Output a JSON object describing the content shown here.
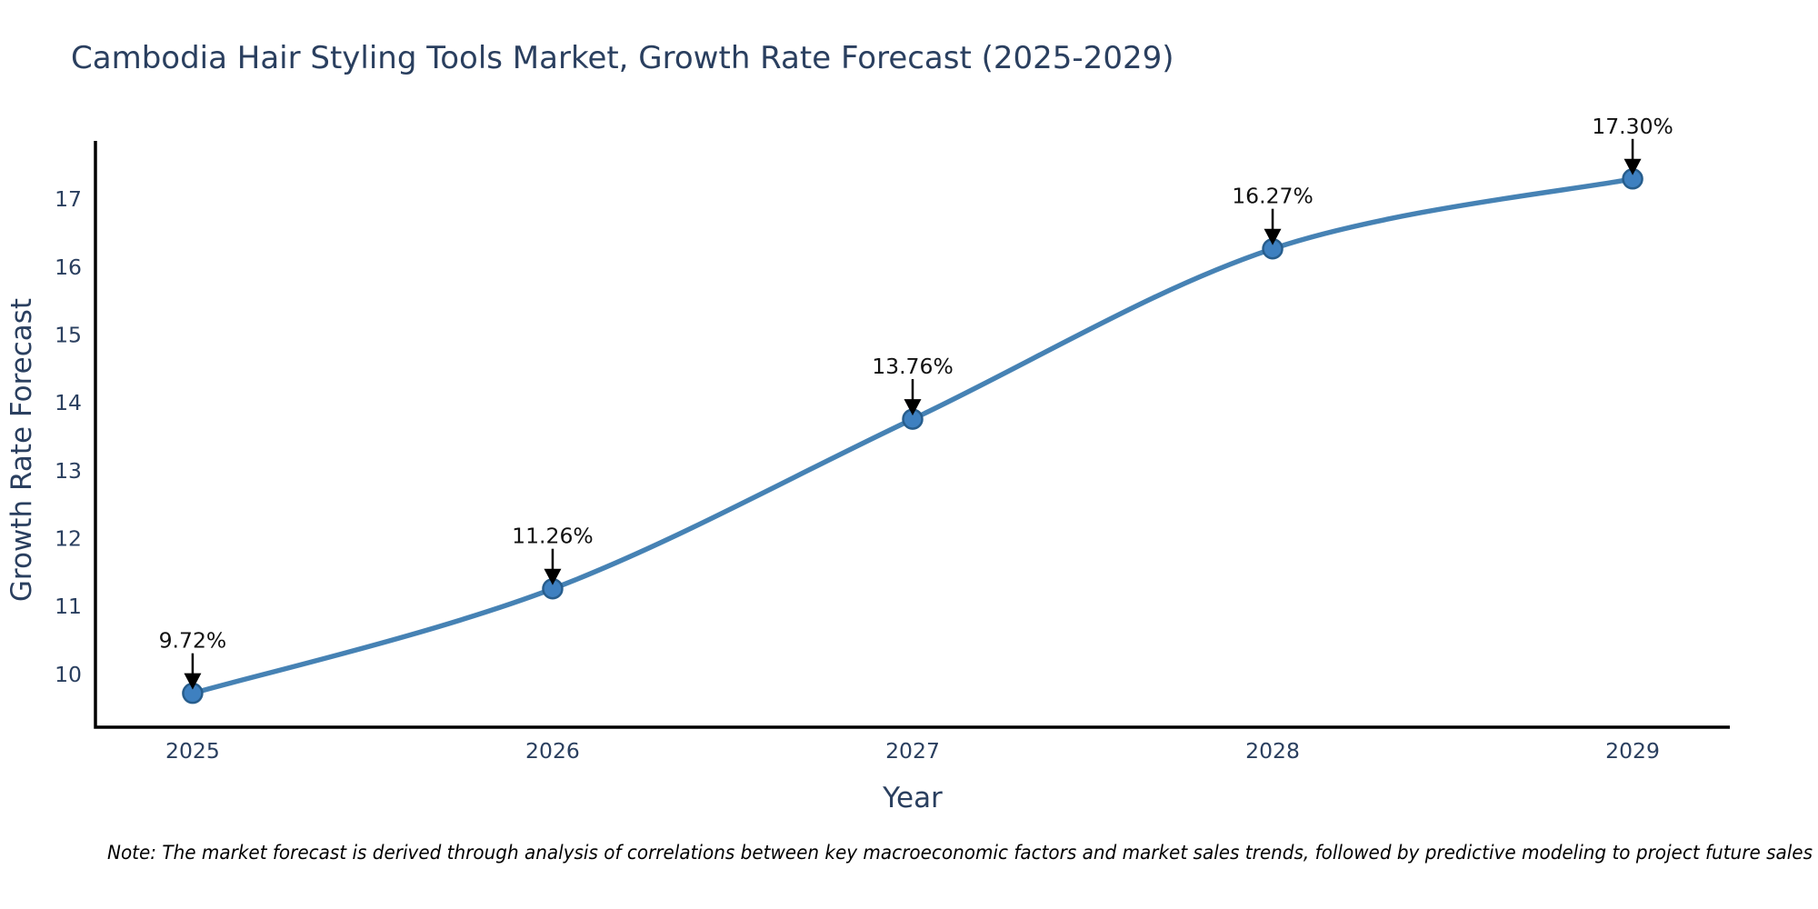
{
  "note": "Note: The market forecast is derived through analysis of correlations between key macroeconomic factors and market sales trends, followed by predictive modeling to project future sales",
  "chart_data": {
    "type": "line",
    "title": "Cambodia Hair Styling Tools Market, Growth Rate Forecast (2025-2029)",
    "xlabel": "Year",
    "ylabel": "Growth Rate Forecast",
    "x": [
      2025,
      2026,
      2027,
      2028,
      2029
    ],
    "xticks": [
      "2025",
      "2026",
      "2027",
      "2028",
      "2029"
    ],
    "yticks": [
      10,
      11,
      12,
      13,
      14,
      15,
      16,
      17
    ],
    "xlim": [
      2024.73,
      2029.27
    ],
    "ylim": [
      9.22,
      17.86
    ],
    "series": [
      {
        "name": "Growth Rate Forecast",
        "values": [
          9.72,
          11.26,
          13.76,
          16.27,
          17.3
        ],
        "point_labels": [
          "9.72%",
          "11.26%",
          "13.76%",
          "16.27%",
          "17.30%"
        ]
      }
    ],
    "line_shape": "spline",
    "grid": false,
    "legend": "none",
    "colors": {
      "line": "#4682b4",
      "marker_fill": "#3e80c0",
      "marker_edge": "#275d8c",
      "axis_line": "#000000",
      "text": "#2a3f5f",
      "annotation_text": "#111111",
      "arrow": "#000000",
      "note_text": "#000000",
      "background": "#ffffff"
    }
  }
}
